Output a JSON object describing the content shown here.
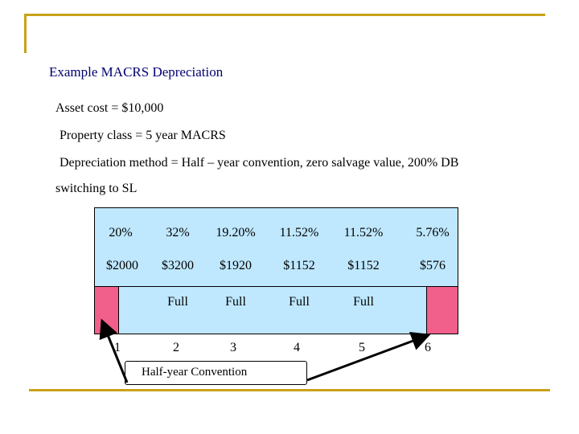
{
  "slide": {
    "title": "Example  MACRS  Depreciation",
    "lines": [
      "Asset cost = $10,000",
      "Property class = 5 year  MACRS",
      "Depreciation method = Half – year  convention, zero salvage value,    200%   DB",
      "switching to SL"
    ]
  },
  "table": {
    "rates": [
      "20%",
      "32%",
      "19.20%",
      "11.52%",
      "11.52%",
      "5.76%"
    ],
    "amounts": [
      "$2000",
      "$3200",
      "$1920",
      "$1152",
      "$1152",
      "$576"
    ],
    "full_labels": [
      "Full",
      "Full",
      "Full",
      "Full"
    ],
    "years": [
      "1",
      "2",
      "3",
      "4",
      "5",
      "6"
    ]
  },
  "callout": {
    "label": "Half-year Convention"
  },
  "colors": {
    "accent_bar": "#c9a21a",
    "table_bg": "#bfe8ff",
    "half_year_bar": "#f0608a",
    "title": "#000070"
  }
}
